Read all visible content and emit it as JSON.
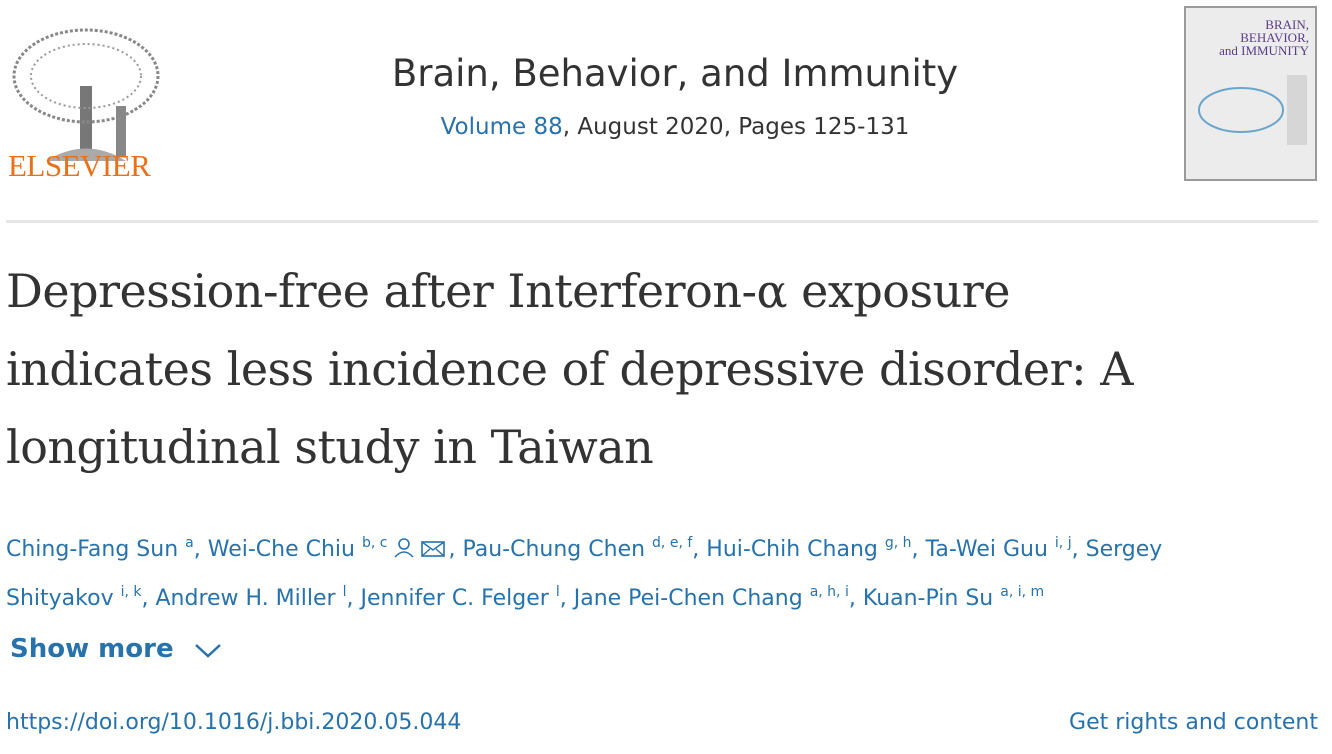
{
  "header": {
    "publisher": "ELSEVIER",
    "journal": "Brain, Behavior, and Immunity",
    "volume": "Volume 88",
    "issue_info": ", August 2020, Pages 125-131"
  },
  "cover": {
    "title_lines": [
      "BRAIN,",
      "BEHAVIOR,",
      "and IMMUNITY"
    ]
  },
  "article": {
    "title_lines": [
      "Depression-free after Interferon-α exposure",
      "indicates less incidence of depressive disorder: A",
      "longitudinal study in Taiwan"
    ],
    "authors": [
      {
        "name": "Ching-Fang Sun",
        "sup": "a",
        "sep": ","
      },
      {
        "name": "Wei-Che Chiu",
        "sup": "b, c",
        "sep": ","
      },
      {
        "name": "Pau-Chung Chen",
        "sup": "d, e, f",
        "sep": ","
      },
      {
        "name": "Hui-Chih Chang",
        "sup": "g, h",
        "sep": ","
      },
      {
        "name": "Ta-Wei Guu",
        "sup": "i, j",
        "sep": ","
      },
      {
        "name": "Sergey Shityakov",
        "sup": "i, k",
        "sep": ","
      },
      {
        "name": "Andrew H. Miller",
        "sup": "l",
        "sep": ","
      },
      {
        "name": "Jennifer C. Felger",
        "sup": "l",
        "sep": ","
      },
      {
        "name": "Jane Pei-Chen Chang",
        "sup": "a, h, i",
        "sep": ","
      },
      {
        "name": "Kuan-Pin Su",
        "sup": "a, i, m"
      }
    ],
    "show_more": "Show more",
    "doi": "https://doi.org/10.1016/j.bbi.2020.05.044",
    "rights": "Get rights and content"
  }
}
